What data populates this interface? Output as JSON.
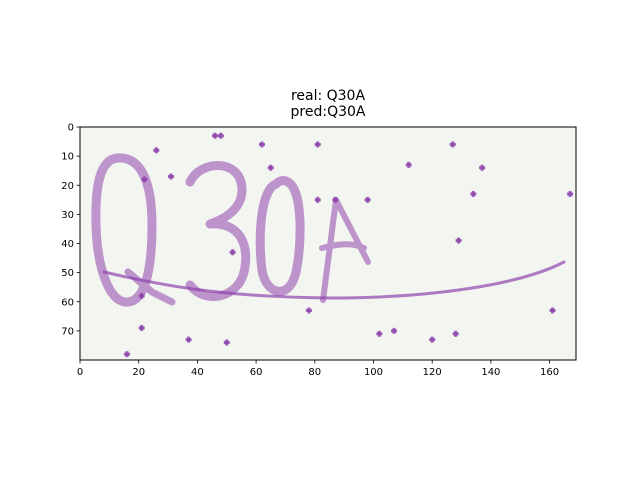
{
  "chart_data": {
    "type": "image",
    "title_lines": [
      "real: Q30A",
      "pred:Q30A"
    ],
    "image_text": "Q30A",
    "xlim": [
      0,
      169
    ],
    "ylim": [
      80,
      0
    ],
    "xticks": [
      0,
      20,
      40,
      60,
      80,
      100,
      120,
      140,
      160
    ],
    "yticks": [
      0,
      10,
      20,
      30,
      40,
      50,
      60,
      70
    ],
    "xlabel": "",
    "ylabel": "",
    "colors": {
      "background": "#f3f5f0",
      "stroke": "#9b59b6",
      "noise": "#8e44ad",
      "axis": "#000000"
    },
    "noise_dots": [
      [
        46,
        3
      ],
      [
        48,
        3
      ],
      [
        26,
        8
      ],
      [
        62,
        6
      ],
      [
        81,
        6
      ],
      [
        127,
        6
      ],
      [
        22,
        18
      ],
      [
        31,
        17
      ],
      [
        65,
        14
      ],
      [
        112,
        13
      ],
      [
        137,
        14
      ],
      [
        81,
        25
      ],
      [
        87,
        25
      ],
      [
        98,
        25
      ],
      [
        134,
        23
      ],
      [
        167,
        23
      ],
      [
        52,
        43
      ],
      [
        129,
        39
      ],
      [
        21,
        58
      ],
      [
        78,
        63
      ],
      [
        161,
        63
      ],
      [
        21,
        69
      ],
      [
        37,
        73
      ],
      [
        50,
        74
      ],
      [
        102,
        71
      ],
      [
        107,
        70
      ],
      [
        120,
        73
      ],
      [
        128,
        71
      ],
      [
        16,
        78
      ]
    ]
  }
}
